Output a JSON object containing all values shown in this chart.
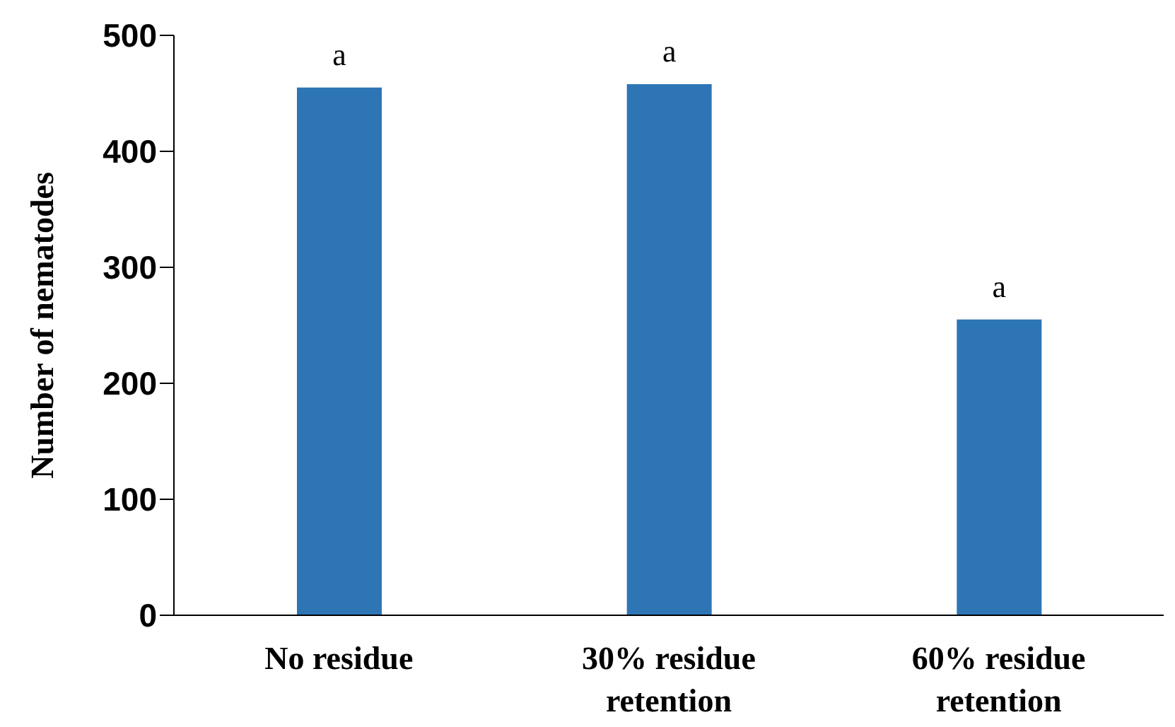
{
  "chart_data": {
    "type": "bar",
    "ylabel": "Number of nematodes",
    "categories": [
      "No residue",
      "30% residue retention",
      "60% residue retention"
    ],
    "values": [
      455,
      458,
      255
    ],
    "color": "#2e75b6",
    "value_labels": [
      "a",
      "a",
      "a"
    ],
    "ylim": [
      0,
      500
    ],
    "yticks": [
      0,
      100,
      200,
      300,
      400,
      500
    ],
    "grid": false,
    "legend": false
  }
}
